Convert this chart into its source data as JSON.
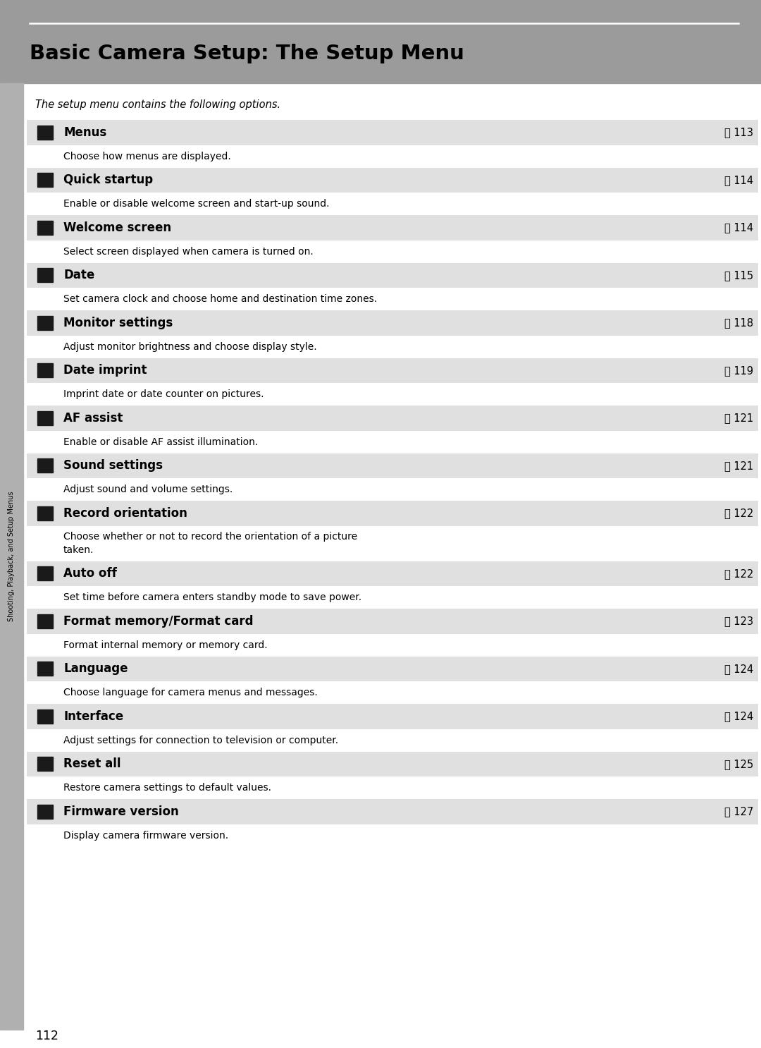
{
  "title": "Basic Camera Setup: The Setup Menu",
  "subtitle": "The setup menu contains the following options.",
  "header_bg": "#9B9B9B",
  "page_bg": "#FFFFFF",
  "row_bg_dark": "#E0E0E0",
  "row_bg_light": "#FFFFFF",
  "sidebar_bg": "#B0B0B0",
  "sidebar_text": "Shooting, Playback, and Setup Menus",
  "page_number": "112",
  "entries": [
    {
      "name": "Menus",
      "page": "113",
      "desc": "Choose how menus are displayed.",
      "desc_lines": 1
    },
    {
      "name": "Quick startup",
      "page": "114",
      "desc": "Enable or disable welcome screen and start-up sound.",
      "desc_lines": 1
    },
    {
      "name": "Welcome screen",
      "page": "114",
      "desc": "Select screen displayed when camera is turned on.",
      "desc_lines": 1
    },
    {
      "name": "Date",
      "page": "115",
      "desc": "Set camera clock and choose home and destination time zones.",
      "desc_lines": 1
    },
    {
      "name": "Monitor settings",
      "page": "118",
      "desc": "Adjust monitor brightness and choose display style.",
      "desc_lines": 1
    },
    {
      "name": "Date imprint",
      "page": "119",
      "desc": "Imprint date or date counter on pictures.",
      "desc_lines": 1
    },
    {
      "name": "AF assist",
      "page": "121",
      "desc": "Enable or disable AF assist illumination.",
      "desc_lines": 1
    },
    {
      "name": "Sound settings",
      "page": "121",
      "desc": "Adjust sound and volume settings.",
      "desc_lines": 1
    },
    {
      "name": "Record orientation",
      "page": "122",
      "desc": "Choose whether or not to record the orientation of a picture\ntaken.",
      "desc_lines": 2
    },
    {
      "name": "Auto off",
      "page": "122",
      "desc": "Set time before camera enters standby mode to save power.",
      "desc_lines": 1
    },
    {
      "name": "Format memory/Format card",
      "page": "123",
      "desc": "Format internal memory or memory card.",
      "desc_lines": 1
    },
    {
      "name": "Language",
      "page": "124",
      "desc": "Choose language for camera menus and messages.",
      "desc_lines": 1
    },
    {
      "name": "Interface",
      "page": "124",
      "desc": "Adjust settings for connection to television or computer.",
      "desc_lines": 1
    },
    {
      "name": "Reset all",
      "page": "125",
      "desc": "Restore camera settings to default values.",
      "desc_lines": 1
    },
    {
      "name": "Firmware version",
      "page": "127",
      "desc": "Display camera firmware version.",
      "desc_lines": 1
    }
  ]
}
